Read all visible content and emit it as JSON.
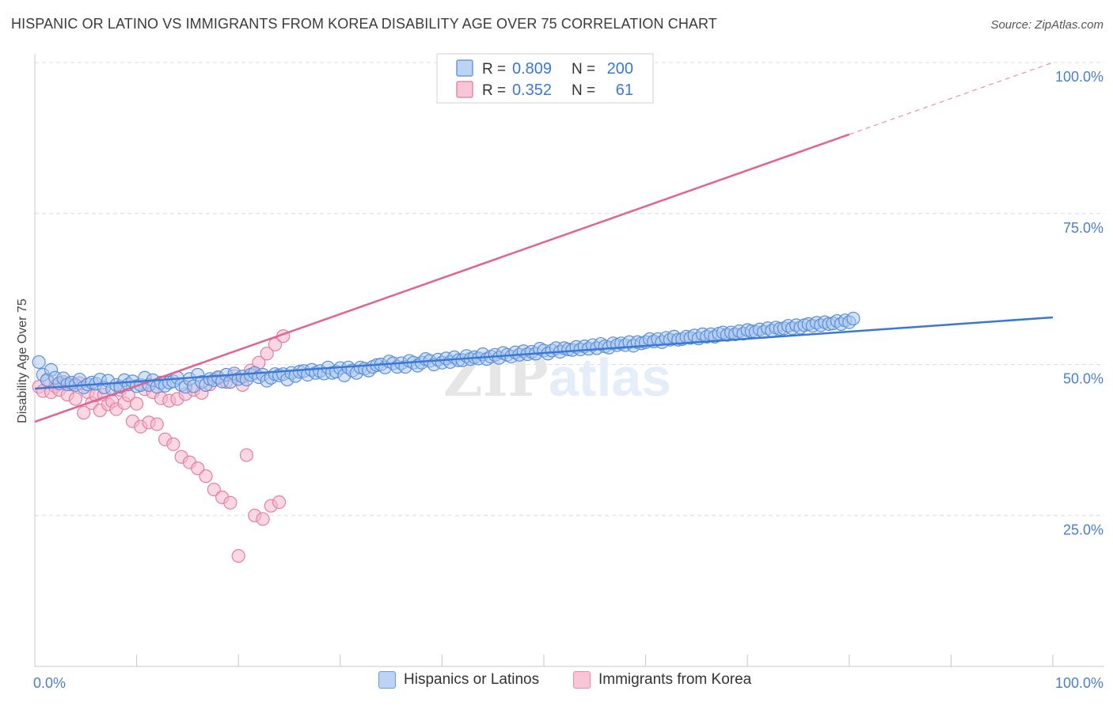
{
  "title": "HISPANIC OR LATINO VS IMMIGRANTS FROM KOREA DISABILITY AGE OVER 75 CORRELATION CHART",
  "source": "Source: ZipAtlas.com",
  "watermark": {
    "zip": "ZIP",
    "atlas": "atlas"
  },
  "colors": {
    "blue_fill": "#a9c6f0",
    "blue_stroke": "#5b8fd9",
    "blue_line": "#3a78d6",
    "pink_fill": "#f6b6ca",
    "pink_stroke": "#e57fa0",
    "pink_line": "#e0648f",
    "axis_label": "#4a7fcf",
    "grid": "#dcdcdc"
  },
  "legend": {
    "rows": [
      {
        "r_label": "R =",
        "r_value": "0.809",
        "n_label": "N =",
        "n_value": "200",
        "series": "blue"
      },
      {
        "r_label": "R =",
        "r_value": "0.352",
        "n_label": "N =",
        "n_value": "61",
        "series": "pink"
      }
    ]
  },
  "chart_data": {
    "type": "scatter",
    "title": "HISPANIC OR LATINO VS IMMIGRANTS FROM KOREA DISABILITY AGE OVER 75 CORRELATION CHART",
    "xlabel": "",
    "ylabel": "Disability Age Over 75",
    "xlim": [
      0,
      100
    ],
    "ylim": [
      0,
      100
    ],
    "x_tick_labels": [
      "0.0%",
      "100.0%"
    ],
    "y_tick_labels": [
      "25.0%",
      "50.0%",
      "75.0%",
      "100.0%"
    ],
    "y_ticks": [
      25,
      50,
      75,
      100
    ],
    "grid": true,
    "legend_position": "top-center",
    "series": [
      {
        "name": "Hispanics or Latinos",
        "color": "blue",
        "r": 0.809,
        "n": 200,
        "trend": {
          "x0": 0,
          "y0": 46.0,
          "x1": 100,
          "y1": 57.8
        },
        "points": [
          [
            0.4,
            50.4
          ],
          [
            0.8,
            48.3
          ],
          [
            1.2,
            47.4
          ],
          [
            1.6,
            49.1
          ],
          [
            2.0,
            47.8
          ],
          [
            2.4,
            46.9
          ],
          [
            2.8,
            47.7
          ],
          [
            3.2,
            46.7
          ],
          [
            3.6,
            47.0
          ],
          [
            4.0,
            46.6
          ],
          [
            4.4,
            47.5
          ],
          [
            4.8,
            46.2
          ],
          [
            5.2,
            46.7
          ],
          [
            5.6,
            47.0
          ],
          [
            6.0,
            46.8
          ],
          [
            6.4,
            47.5
          ],
          [
            6.8,
            46.2
          ],
          [
            7.2,
            47.3
          ],
          [
            7.6,
            45.9
          ],
          [
            8.0,
            46.6
          ],
          [
            8.4,
            46.3
          ],
          [
            8.8,
            47.4
          ],
          [
            9.2,
            46.7
          ],
          [
            9.6,
            47.2
          ],
          [
            10.0,
            46.4
          ],
          [
            10.4,
            46.6
          ],
          [
            10.8,
            47.8
          ],
          [
            11.2,
            46.6
          ],
          [
            11.6,
            47.4
          ],
          [
            12.0,
            46.3
          ],
          [
            12.4,
            47.0
          ],
          [
            12.8,
            46.5
          ],
          [
            13.2,
            47.0
          ],
          [
            13.6,
            47.2
          ],
          [
            14.0,
            47.8
          ],
          [
            14.4,
            46.6
          ],
          [
            14.8,
            46.3
          ],
          [
            15.2,
            47.6
          ],
          [
            15.6,
            46.4
          ],
          [
            16.0,
            48.3
          ],
          [
            16.4,
            47.1
          ],
          [
            16.8,
            46.6
          ],
          [
            17.2,
            47.6
          ],
          [
            17.6,
            47.4
          ],
          [
            18.0,
            47.9
          ],
          [
            18.4,
            47.2
          ],
          [
            18.8,
            48.3
          ],
          [
            19.2,
            47.1
          ],
          [
            19.6,
            48.5
          ],
          [
            20.0,
            47.6
          ],
          [
            20.4,
            48.0
          ],
          [
            20.8,
            47.5
          ],
          [
            21.2,
            48.3
          ],
          [
            21.6,
            48.6
          ],
          [
            22.0,
            47.9
          ],
          [
            22.4,
            48.3
          ],
          [
            22.8,
            47.3
          ],
          [
            23.2,
            47.8
          ],
          [
            23.6,
            48.4
          ],
          [
            24.0,
            48.2
          ],
          [
            24.4,
            48.4
          ],
          [
            24.8,
            47.5
          ],
          [
            25.2,
            48.6
          ],
          [
            25.6,
            48.1
          ],
          [
            26.0,
            48.8
          ],
          [
            26.4,
            48.9
          ],
          [
            26.8,
            48.3
          ],
          [
            27.2,
            49.1
          ],
          [
            27.6,
            48.6
          ],
          [
            28.0,
            48.9
          ],
          [
            28.4,
            48.5
          ],
          [
            28.8,
            49.5
          ],
          [
            29.2,
            48.6
          ],
          [
            29.6,
            48.8
          ],
          [
            30.0,
            49.4
          ],
          [
            30.4,
            48.2
          ],
          [
            30.8,
            49.5
          ],
          [
            31.2,
            49.0
          ],
          [
            31.6,
            48.6
          ],
          [
            32.0,
            49.5
          ],
          [
            32.4,
            49.3
          ],
          [
            32.8,
            49.0
          ],
          [
            33.2,
            49.6
          ],
          [
            33.6,
            49.9
          ],
          [
            34.0,
            50.0
          ],
          [
            34.4,
            49.5
          ],
          [
            34.8,
            50.5
          ],
          [
            35.2,
            50.2
          ],
          [
            35.6,
            49.6
          ],
          [
            36.0,
            50.2
          ],
          [
            36.4,
            49.6
          ],
          [
            36.8,
            50.6
          ],
          [
            37.2,
            50.3
          ],
          [
            37.6,
            49.8
          ],
          [
            38.0,
            50.3
          ],
          [
            38.4,
            50.9
          ],
          [
            38.8,
            50.6
          ],
          [
            39.2,
            50.0
          ],
          [
            39.6,
            50.8
          ],
          [
            40.0,
            50.3
          ],
          [
            40.4,
            51.0
          ],
          [
            40.8,
            50.4
          ],
          [
            41.2,
            51.2
          ],
          [
            41.6,
            50.7
          ],
          [
            42.0,
            50.7
          ],
          [
            42.4,
            51.4
          ],
          [
            42.8,
            50.9
          ],
          [
            43.2,
            51.2
          ],
          [
            43.6,
            51.0
          ],
          [
            44.0,
            51.7
          ],
          [
            44.4,
            50.9
          ],
          [
            44.8,
            51.3
          ],
          [
            45.2,
            51.6
          ],
          [
            45.6,
            51.1
          ],
          [
            46.0,
            51.9
          ],
          [
            46.4,
            51.6
          ],
          [
            46.8,
            51.3
          ],
          [
            47.2,
            52.0
          ],
          [
            47.6,
            51.6
          ],
          [
            48.0,
            52.2
          ],
          [
            48.4,
            51.7
          ],
          [
            48.8,
            52.1
          ],
          [
            49.2,
            51.8
          ],
          [
            49.6,
            52.6
          ],
          [
            50.0,
            52.3
          ],
          [
            50.4,
            51.8
          ],
          [
            50.8,
            52.3
          ],
          [
            51.2,
            52.7
          ],
          [
            51.6,
            52.1
          ],
          [
            52.0,
            52.7
          ],
          [
            52.4,
            52.5
          ],
          [
            52.8,
            52.4
          ],
          [
            53.2,
            52.9
          ],
          [
            53.6,
            52.5
          ],
          [
            54.0,
            53.0
          ],
          [
            54.4,
            52.6
          ],
          [
            54.8,
            53.2
          ],
          [
            55.2,
            52.7
          ],
          [
            55.6,
            53.4
          ],
          [
            56.0,
            53.0
          ],
          [
            56.4,
            52.8
          ],
          [
            56.8,
            53.5
          ],
          [
            57.2,
            53.2
          ],
          [
            57.6,
            53.5
          ],
          [
            58.0,
            53.2
          ],
          [
            58.4,
            53.7
          ],
          [
            58.8,
            53.1
          ],
          [
            59.2,
            53.7
          ],
          [
            59.6,
            53.5
          ],
          [
            60.0,
            53.7
          ],
          [
            60.4,
            54.2
          ],
          [
            60.8,
            53.8
          ],
          [
            61.2,
            54.2
          ],
          [
            61.6,
            53.7
          ],
          [
            62.0,
            54.4
          ],
          [
            62.4,
            54.1
          ],
          [
            62.8,
            54.6
          ],
          [
            63.2,
            54.1
          ],
          [
            63.6,
            54.2
          ],
          [
            64.0,
            54.6
          ],
          [
            64.4,
            54.4
          ],
          [
            64.8,
            54.8
          ],
          [
            65.2,
            54.3
          ],
          [
            65.6,
            55.0
          ],
          [
            66.0,
            54.6
          ],
          [
            66.4,
            55.0
          ],
          [
            66.8,
            54.6
          ],
          [
            67.2,
            55.1
          ],
          [
            67.6,
            55.3
          ],
          [
            68.0,
            54.9
          ],
          [
            68.4,
            55.3
          ],
          [
            68.8,
            55.0
          ],
          [
            69.2,
            55.5
          ],
          [
            69.6,
            55.1
          ],
          [
            70.0,
            55.7
          ],
          [
            70.4,
            55.5
          ],
          [
            70.8,
            55.4
          ],
          [
            71.2,
            55.8
          ],
          [
            71.6,
            55.4
          ],
          [
            72.0,
            56.0
          ],
          [
            72.4,
            55.6
          ],
          [
            72.8,
            56.1
          ],
          [
            73.2,
            55.9
          ],
          [
            73.6,
            56.0
          ],
          [
            74.0,
            56.4
          ],
          [
            74.4,
            56.0
          ],
          [
            74.8,
            56.5
          ],
          [
            75.2,
            56.1
          ],
          [
            75.6,
            56.5
          ],
          [
            76.0,
            56.7
          ],
          [
            76.4,
            56.4
          ],
          [
            76.8,
            56.9
          ],
          [
            77.2,
            56.5
          ],
          [
            77.6,
            57.0
          ],
          [
            78.0,
            56.7
          ],
          [
            78.4,
            56.8
          ],
          [
            78.8,
            57.2
          ],
          [
            79.2,
            56.7
          ],
          [
            79.6,
            57.3
          ],
          [
            80.0,
            57.0
          ],
          [
            80.4,
            57.6
          ]
        ]
      },
      {
        "name": "Immigrants from Korea",
        "color": "pink",
        "r": 0.352,
        "n": 61,
        "trend": {
          "x0": 0,
          "y0": 40.5,
          "x1": 100,
          "y1": 100.0
        },
        "points": [
          [
            0.4,
            46.3
          ],
          [
            0.8,
            45.6
          ],
          [
            1.2,
            47.5
          ],
          [
            1.6,
            45.4
          ],
          [
            2.0,
            46.4
          ],
          [
            2.4,
            45.8
          ],
          [
            2.8,
            47.1
          ],
          [
            3.2,
            45.0
          ],
          [
            3.6,
            46.7
          ],
          [
            4.0,
            44.3
          ],
          [
            4.4,
            46.9
          ],
          [
            4.8,
            42.0
          ],
          [
            5.2,
            45.4
          ],
          [
            5.6,
            43.6
          ],
          [
            6.0,
            44.9
          ],
          [
            6.4,
            42.4
          ],
          [
            6.8,
            45.0
          ],
          [
            7.2,
            43.4
          ],
          [
            7.6,
            43.9
          ],
          [
            8.0,
            42.6
          ],
          [
            8.4,
            45.8
          ],
          [
            8.8,
            43.6
          ],
          [
            9.2,
            44.9
          ],
          [
            9.6,
            40.6
          ],
          [
            10.0,
            43.5
          ],
          [
            10.4,
            39.7
          ],
          [
            10.8,
            45.9
          ],
          [
            11.2,
            40.4
          ],
          [
            11.6,
            45.4
          ],
          [
            12.0,
            40.1
          ],
          [
            12.4,
            44.4
          ],
          [
            12.8,
            37.6
          ],
          [
            13.2,
            44.0
          ],
          [
            13.6,
            36.8
          ],
          [
            14.0,
            44.3
          ],
          [
            14.4,
            34.7
          ],
          [
            14.8,
            45.1
          ],
          [
            15.2,
            33.8
          ],
          [
            15.6,
            45.8
          ],
          [
            16.0,
            32.8
          ],
          [
            16.4,
            45.3
          ],
          [
            16.8,
            31.5
          ],
          [
            17.2,
            46.7
          ],
          [
            17.6,
            29.3
          ],
          [
            18.0,
            47.7
          ],
          [
            18.4,
            28.0
          ],
          [
            18.8,
            47.1
          ],
          [
            19.2,
            27.1
          ],
          [
            19.6,
            48.1
          ],
          [
            20.0,
            18.3
          ],
          [
            20.4,
            46.6
          ],
          [
            20.8,
            35.0
          ],
          [
            21.2,
            49.0
          ],
          [
            21.6,
            25.0
          ],
          [
            22.0,
            50.3
          ],
          [
            22.4,
            24.4
          ],
          [
            22.8,
            51.8
          ],
          [
            23.2,
            26.6
          ],
          [
            23.6,
            53.3
          ],
          [
            24.0,
            27.2
          ],
          [
            24.4,
            54.7
          ]
        ]
      }
    ]
  },
  "bottom_legend": [
    {
      "label": "Hispanics or Latinos",
      "series": "blue"
    },
    {
      "label": "Immigrants from Korea",
      "series": "pink"
    }
  ]
}
